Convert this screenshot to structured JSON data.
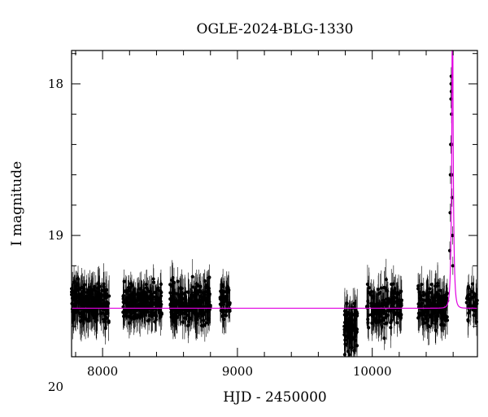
{
  "chart_data": {
    "type": "scatter",
    "title": "OGLE-2024-BLG-1330",
    "xlabel": "HJD - 2450000",
    "ylabel": "I magnitude",
    "xlim": [
      7770,
      10780
    ],
    "ylim": [
      19.8,
      17.78
    ],
    "y_inverted": true,
    "x_ticks": [
      8000,
      9000,
      10000
    ],
    "y_ticks": [
      18,
      19,
      20
    ],
    "grid": false,
    "colors": {
      "data": "#000000",
      "model": "#e100e1",
      "frame": "#000000"
    },
    "series": [
      {
        "kind": "points_with_errorbars",
        "segments": [
          {
            "x_range": [
              7770,
              8050
            ],
            "mean_mag": 19.45,
            "scatter": 0.16,
            "err": 0.1,
            "count": 260
          },
          {
            "x_range": [
              8150,
              8440
            ],
            "mean_mag": 19.45,
            "scatter": 0.14,
            "err": 0.09,
            "count": 240
          },
          {
            "x_range": [
              8500,
              8800
            ],
            "mean_mag": 19.45,
            "scatter": 0.17,
            "err": 0.1,
            "count": 260
          },
          {
            "x_range": [
              8870,
              8950
            ],
            "mean_mag": 19.45,
            "scatter": 0.13,
            "err": 0.09,
            "count": 55
          },
          {
            "x_range": [
              9790,
              9890
            ],
            "mean_mag": 19.6,
            "scatter": 0.22,
            "err": 0.12,
            "count": 95
          },
          {
            "x_range": [
              9960,
              10220
            ],
            "mean_mag": 19.47,
            "scatter": 0.17,
            "err": 0.1,
            "count": 170
          },
          {
            "x_range": [
              10340,
              10560
            ],
            "mean_mag": 19.47,
            "scatter": 0.17,
            "err": 0.1,
            "count": 170
          },
          {
            "x_range": [
              10700,
              10780
            ],
            "mean_mag": 19.45,
            "scatter": 0.14,
            "err": 0.09,
            "count": 45
          }
        ],
        "peak_points": [
          [
            10575,
            19.1
          ],
          [
            10578,
            18.85
          ],
          [
            10580,
            18.6
          ],
          [
            10582,
            18.4
          ],
          [
            10584,
            18.1
          ],
          [
            10585,
            18.0
          ],
          [
            10586,
            17.95
          ],
          [
            10587,
            18.05
          ],
          [
            10588,
            18.2
          ],
          [
            10589,
            18.4
          ],
          [
            10590,
            18.6
          ],
          [
            10592,
            18.75
          ],
          [
            10595,
            19.0
          ],
          [
            10598,
            19.2
          ]
        ]
      },
      {
        "kind": "model_curve",
        "baseline_mag": 19.48,
        "t0": 10595,
        "tE": 14,
        "u0": 0.04
      }
    ]
  }
}
